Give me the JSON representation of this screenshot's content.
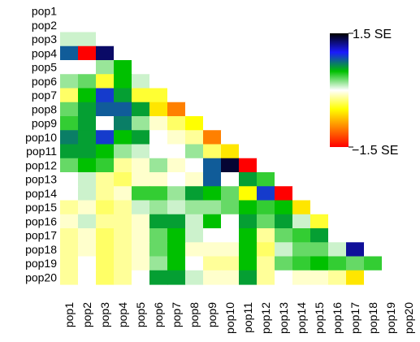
{
  "chart_data": {
    "type": "heatmap",
    "layout": "lower-triangular",
    "rows": [
      "pop1",
      "pop2",
      "pop3",
      "pop4",
      "pop5",
      "pop6",
      "pop7",
      "pop8",
      "pop9",
      "pop10",
      "pop11",
      "pop12",
      "pop13",
      "pop14",
      "pop15",
      "pop16",
      "pop17",
      "pop18",
      "pop19",
      "pop20"
    ],
    "cols": [
      "pop1",
      "pop2",
      "pop3",
      "pop4",
      "pop5",
      "pop6",
      "pop7",
      "pop8",
      "pop9",
      "pop10",
      "pop11",
      "pop12",
      "pop13",
      "pop14",
      "pop15",
      "pop16",
      "pop17",
      "pop18",
      "pop19",
      "pop20"
    ],
    "values": [
      [
        0.0
      ],
      [
        0.0,
        0.0
      ],
      [
        0.1,
        0.1,
        0.0
      ],
      [
        0.8,
        -1.5,
        1.3,
        0.0
      ],
      [
        0.0,
        0.0,
        0.2,
        0.5,
        0.0
      ],
      [
        0.2,
        0.3,
        -0.4,
        0.5,
        0.1,
        0.0
      ],
      [
        -0.3,
        0.5,
        0.9,
        0.6,
        -0.4,
        -0.4,
        0.0
      ],
      [
        0.3,
        0.6,
        0.8,
        0.8,
        0.6,
        -0.6,
        -1.0,
        0.0
      ],
      [
        0.4,
        0.6,
        0.0,
        0.7,
        0.2,
        -0.1,
        -0.3,
        -0.5,
        0.0
      ],
      [
        0.7,
        0.6,
        0.9,
        0.5,
        0.6,
        0.0,
        -0.1,
        -0.2,
        -1.0,
        0.0
      ],
      [
        0.6,
        0.6,
        0.5,
        0.2,
        0.1,
        0.0,
        0.0,
        0.2,
        -0.3,
        -0.6,
        0.0
      ],
      [
        0.3,
        0.5,
        0.4,
        -0.2,
        -0.1,
        0.2,
        -0.1,
        0.0,
        0.8,
        1.4,
        -1.5,
        0.0
      ],
      [
        0.0,
        0.1,
        -0.2,
        -0.3,
        -0.1,
        -0.1,
        0.0,
        -0.1,
        0.8,
        0.0,
        0.6,
        0.4,
        0.0
      ],
      [
        0.0,
        0.1,
        -0.2,
        -0.1,
        0.4,
        0.4,
        0.2,
        0.6,
        0.5,
        0.3,
        -0.5,
        0.9,
        -1.5,
        0.0
      ],
      [
        -0.2,
        -0.1,
        -0.3,
        -0.2,
        0.1,
        0.2,
        0.1,
        0.2,
        0.2,
        0.3,
        0.5,
        0.4,
        0.5,
        -0.6,
        0.0
      ],
      [
        -0.1,
        0.1,
        -0.2,
        -0.2,
        -0.1,
        0.6,
        0.6,
        0.1,
        0.5,
        0.0,
        0.6,
        0.3,
        0.6,
        0.1,
        -0.4,
        0.0
      ],
      [
        -0.2,
        -0.1,
        -0.3,
        -0.2,
        -0.1,
        0.3,
        0.5,
        0.1,
        0.0,
        0.0,
        0.5,
        -0.2,
        0.3,
        0.4,
        0.6,
        0.0,
        0.0
      ],
      [
        -0.2,
        -0.1,
        -0.3,
        -0.2,
        -0.1,
        0.3,
        0.5,
        -0.1,
        -0.1,
        -0.1,
        0.5,
        -0.3,
        0.1,
        0.3,
        0.3,
        0.1,
        1.2,
        0.0
      ],
      [
        -0.2,
        0.0,
        -0.3,
        -0.2,
        -0.1,
        0.2,
        0.5,
        0.0,
        -0.2,
        -0.2,
        0.5,
        -0.2,
        0.3,
        0.4,
        0.5,
        0.4,
        0.3,
        0.4,
        0.0
      ],
      [
        -0.2,
        0.0,
        -0.3,
        -0.2,
        0.0,
        0.6,
        0.6,
        0.1,
        -0.1,
        -0.1,
        0.6,
        -0.2,
        0.0,
        -0.1,
        -0.1,
        -0.2,
        -0.6,
        0.0,
        0.0,
        0.0
      ]
    ],
    "diagonal": [
      0.0,
      0.0,
      0.0,
      0.0,
      0.0,
      0.0,
      0.0,
      0.0,
      0.0,
      0.0,
      0.0,
      0.0,
      0.0,
      0.0,
      0.0,
      0.0,
      0.0,
      0.0,
      0.0,
      0.0
    ],
    "colorbar": {
      "max_label": "1.5 SE",
      "min_label": "−1.5 SE",
      "range": [
        -1.5,
        1.5
      ],
      "colors": [
        "#000000",
        "#1a1aff",
        "#00c000",
        "#ffffff",
        "#ffff00",
        "#ff8000",
        "#ff0000"
      ]
    }
  }
}
